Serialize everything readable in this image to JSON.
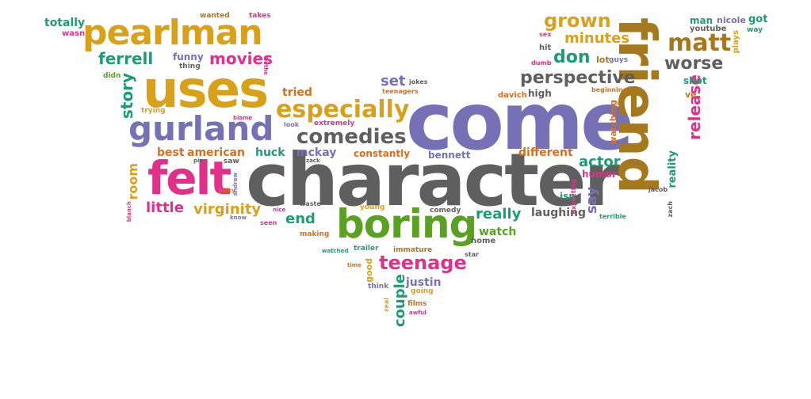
{
  "palette": {
    "orange": "#d96f1c",
    "gold": "#d9a11a",
    "green": "#5aa021",
    "teal": "#1d9b74",
    "purple": "#7670b6",
    "pink": "#e1308a",
    "grey": "#5f5f5f",
    "olive": "#a6781d"
  },
  "words": [
    {
      "text": "character",
      "color": "grey"
    },
    {
      "text": "come",
      "color": "purple"
    },
    {
      "text": "friend",
      "color": "olive"
    },
    {
      "text": "uses",
      "color": "gold"
    },
    {
      "text": "pearlman",
      "color": "gold"
    },
    {
      "text": "boring",
      "color": "green"
    },
    {
      "text": "felt",
      "color": "pink"
    },
    {
      "text": "gurland",
      "color": "purple"
    },
    {
      "text": "especially",
      "color": "gold"
    },
    {
      "text": "comedies",
      "color": "grey"
    },
    {
      "text": "matt",
      "color": "olive"
    },
    {
      "text": "teenage",
      "color": "pink"
    },
    {
      "text": "grown",
      "color": "gold"
    },
    {
      "text": "perspective",
      "color": "grey"
    },
    {
      "text": "release",
      "color": "pink"
    },
    {
      "text": "movies",
      "color": "pink"
    },
    {
      "text": "worse",
      "color": "grey"
    },
    {
      "text": "story",
      "color": "teal"
    },
    {
      "text": "ferrell",
      "color": "teal"
    },
    {
      "text": "minutes",
      "color": "gold"
    },
    {
      "text": "don",
      "color": "teal"
    },
    {
      "text": "couple",
      "color": "teal"
    },
    {
      "text": "virginity",
      "color": "gold"
    },
    {
      "text": "little",
      "color": "pink"
    },
    {
      "text": "really",
      "color": "teal"
    },
    {
      "text": "actor",
      "color": "teal"
    },
    {
      "text": "end",
      "color": "teal"
    },
    {
      "text": "set",
      "color": "purple"
    },
    {
      "text": "say",
      "color": "purple"
    },
    {
      "text": "room",
      "color": "gold"
    },
    {
      "text": "funny",
      "color": "purple"
    },
    {
      "text": "different",
      "color": "orange"
    },
    {
      "text": "watch",
      "color": "green"
    },
    {
      "text": "laughing",
      "color": "grey"
    },
    {
      "text": "justin",
      "color": "purple"
    },
    {
      "text": "tried",
      "color": "orange"
    },
    {
      "text": "american",
      "color": "orange"
    },
    {
      "text": "best",
      "color": "orange"
    },
    {
      "text": "huck",
      "color": "teal"
    },
    {
      "text": "mckay",
      "color": "purple"
    },
    {
      "text": "constantly",
      "color": "orange"
    },
    {
      "text": "bennett",
      "color": "purple"
    },
    {
      "text": "humor",
      "color": "pink"
    },
    {
      "text": "reality",
      "color": "teal"
    },
    {
      "text": "watching",
      "color": "orange"
    },
    {
      "text": "shot",
      "color": "teal"
    },
    {
      "text": "high",
      "color": "grey"
    },
    {
      "text": "isn",
      "color": "teal"
    },
    {
      "text": "lot",
      "color": "olive"
    },
    {
      "text": "guys",
      "color": "purple"
    },
    {
      "text": "man",
      "color": "teal"
    },
    {
      "text": "nicole",
      "color": "purple"
    },
    {
      "text": "got",
      "color": "teal"
    },
    {
      "text": "youtube",
      "color": "grey"
    },
    {
      "text": "plays",
      "color": "gold"
    },
    {
      "text": "way",
      "color": "teal"
    },
    {
      "text": "hit",
      "color": "grey"
    },
    {
      "text": "sex",
      "color": "pink"
    },
    {
      "text": "dumb",
      "color": "pink"
    },
    {
      "text": "ve",
      "color": "orange"
    },
    {
      "text": "davich",
      "color": "orange"
    },
    {
      "text": "beginning",
      "color": "orange"
    },
    {
      "text": "jacob",
      "color": "grey"
    },
    {
      "text": "zach",
      "color": "grey"
    },
    {
      "text": "terrible",
      "color": "teal"
    },
    {
      "text": "expecting",
      "color": "pink"
    },
    {
      "text": "totally",
      "color": "teal"
    },
    {
      "text": "wanted",
      "color": "olive"
    },
    {
      "text": "takes",
      "color": "pink"
    },
    {
      "text": "wasn",
      "color": "pink"
    },
    {
      "text": "thing",
      "color": "grey"
    },
    {
      "text": "didn",
      "color": "green"
    },
    {
      "text": "bothe",
      "color": "pink"
    },
    {
      "text": "trying",
      "color": "gold"
    },
    {
      "text": "jokes",
      "color": "grey"
    },
    {
      "text": "teenagers",
      "color": "orange"
    },
    {
      "text": "blame",
      "color": "pink"
    },
    {
      "text": "look",
      "color": "purple"
    },
    {
      "text": "extremely",
      "color": "pink"
    },
    {
      "text": "pie",
      "color": "grey"
    },
    {
      "text": "saw",
      "color": "grey"
    },
    {
      "text": "zack",
      "color": "grey"
    },
    {
      "text": "lucky",
      "color": "orange"
    },
    {
      "text": "andrew",
      "color": "purple"
    },
    {
      "text": "blanch",
      "color": "pink"
    },
    {
      "text": "waste",
      "color": "grey"
    },
    {
      "text": "nice",
      "color": "pink"
    },
    {
      "text": "young",
      "color": "gold"
    },
    {
      "text": "know",
      "color": "purple"
    },
    {
      "text": "comedy",
      "color": "grey"
    },
    {
      "text": "seen",
      "color": "pink"
    },
    {
      "text": "making",
      "color": "orange"
    },
    {
      "text": "home",
      "color": "grey"
    },
    {
      "text": "watched",
      "color": "teal"
    },
    {
      "text": "trailer",
      "color": "teal"
    },
    {
      "text": "immature",
      "color": "olive"
    },
    {
      "text": "star",
      "color": "grey"
    },
    {
      "text": "time",
      "color": "orange"
    },
    {
      "text": "good",
      "color": "gold"
    },
    {
      "text": "think",
      "color": "purple"
    },
    {
      "text": "going",
      "color": "gold"
    },
    {
      "text": "real",
      "color": "gold"
    },
    {
      "text": "films",
      "color": "orange"
    },
    {
      "text": "awful",
      "color": "pink"
    }
  ]
}
